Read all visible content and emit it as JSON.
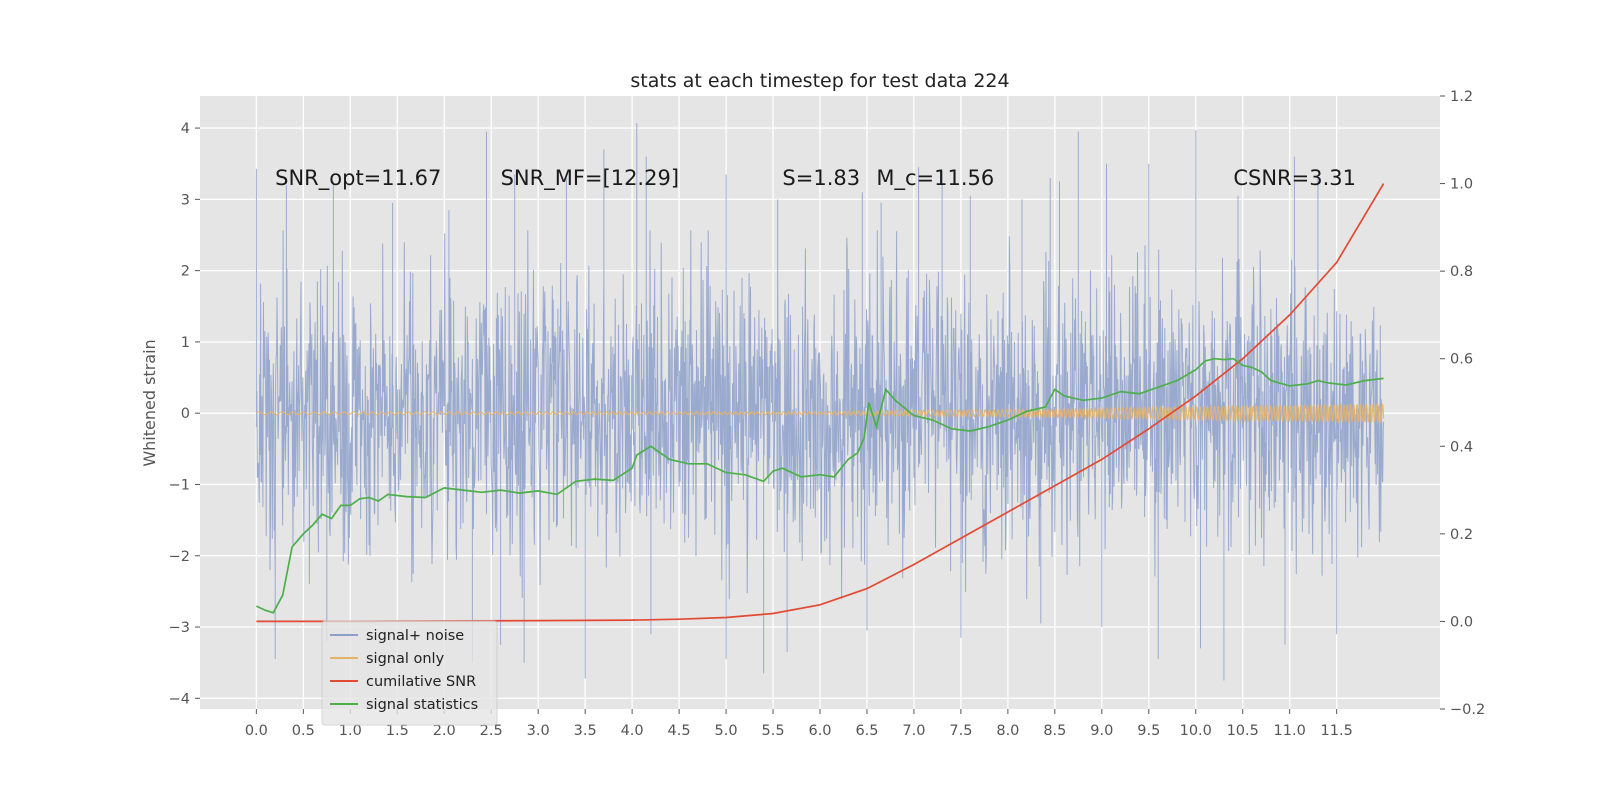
{
  "chart_data": {
    "type": "line",
    "title": "stats at each timestep for test data 224",
    "ylabel": "Whitened strain",
    "xlabel": "",
    "xlim": [
      -0.6,
      12.6
    ],
    "ylim": [
      -4.15,
      4.45
    ],
    "y2lim": [
      -0.2,
      1.2
    ],
    "grid": true,
    "legend_position": "lower-left",
    "x_ticks": [
      0.0,
      0.5,
      1.0,
      1.5,
      2.0,
      2.5,
      3.0,
      3.5,
      4.0,
      4.5,
      5.0,
      5.5,
      6.0,
      6.5,
      7.0,
      7.5,
      8.0,
      8.5,
      9.0,
      9.5,
      10.0,
      10.5,
      11.0,
      11.5
    ],
    "x_tick_labels": [
      "0.0",
      "0.5",
      "1.0",
      "1.5",
      "2.0",
      "2.5",
      "3.0",
      "3.5",
      "4.0",
      "4.5",
      "5.0",
      "5.5",
      "6.0",
      "6.5",
      "7.0",
      "7.5",
      "8.0",
      "8.5",
      "9.0",
      "9.5",
      "10.0",
      "10.5",
      "11.0",
      "11.5"
    ],
    "y_ticks": [
      -4,
      -3,
      -2,
      -1,
      0,
      1,
      2,
      3,
      4
    ],
    "y_tick_labels": [
      "−4",
      "−3",
      "−2",
      "−1",
      "0",
      "1",
      "2",
      "3",
      "4"
    ],
    "y2_ticks": [
      -0.2,
      0.0,
      0.2,
      0.4,
      0.6,
      0.8,
      1.0,
      1.2
    ],
    "y2_tick_labels": [
      "−0.2",
      "0.0",
      "0.2",
      "0.4",
      "0.6",
      "0.8",
      "1.0",
      "1.2"
    ],
    "annotations": [
      {
        "text": "SNR_opt=11.67",
        "x": 0.2,
        "y": 3.3
      },
      {
        "text": "SNR_MF=[12.29]",
        "x": 2.6,
        "y": 3.3
      },
      {
        "text": "S=1.83",
        "x": 5.6,
        "y": 3.3
      },
      {
        "text": "M_c=11.56",
        "x": 6.6,
        "y": 3.3
      },
      {
        "text": "CSNR=3.31",
        "x": 10.4,
        "y": 3.3
      }
    ],
    "series": [
      {
        "name": "signal+ noise",
        "axis": "left",
        "color": "#8da0cb",
        "x_range": [
          0.0,
          12.0
        ],
        "envelope_typical": [
          -1.8,
          1.9
        ],
        "peaks": [
          {
            "x": 0.0,
            "y": 3.43
          },
          {
            "x": 0.32,
            "y": 3.2
          },
          {
            "x": 0.82,
            "y": 3.25
          },
          {
            "x": 1.45,
            "y": 2.95
          },
          {
            "x": 2.05,
            "y": 2.85
          },
          {
            "x": 2.45,
            "y": 3.95
          },
          {
            "x": 2.75,
            "y": 3.35
          },
          {
            "x": 3.3,
            "y": 3.3
          },
          {
            "x": 3.7,
            "y": 3.7
          },
          {
            "x": 4.05,
            "y": 4.07
          },
          {
            "x": 4.15,
            "y": 3.6
          },
          {
            "x": 5.0,
            "y": 3.35
          },
          {
            "x": 5.55,
            "y": 3.0
          },
          {
            "x": 6.45,
            "y": 3.1
          },
          {
            "x": 6.65,
            "y": 2.95
          },
          {
            "x": 7.05,
            "y": 3.45
          },
          {
            "x": 7.3,
            "y": 3.4
          },
          {
            "x": 7.6,
            "y": 3.05
          },
          {
            "x": 8.15,
            "y": 3.0
          },
          {
            "x": 8.45,
            "y": 3.3
          },
          {
            "x": 8.55,
            "y": 3.25
          },
          {
            "x": 8.75,
            "y": 3.95
          },
          {
            "x": 9.05,
            "y": 3.5
          },
          {
            "x": 9.5,
            "y": 3.5
          },
          {
            "x": 10.0,
            "y": 3.97
          },
          {
            "x": 10.45,
            "y": 3.05
          },
          {
            "x": 11.05,
            "y": 3.6
          },
          {
            "x": 11.3,
            "y": 3.3
          }
        ],
        "troughs": [
          {
            "x": 0.2,
            "y": -3.45
          },
          {
            "x": 0.75,
            "y": -3.2
          },
          {
            "x": 2.3,
            "y": -3.5
          },
          {
            "x": 2.6,
            "y": -3.25
          },
          {
            "x": 2.85,
            "y": -3.5
          },
          {
            "x": 3.5,
            "y": -3.72
          },
          {
            "x": 4.2,
            "y": -3.1
          },
          {
            "x": 5.0,
            "y": -3.45
          },
          {
            "x": 5.4,
            "y": -3.65
          },
          {
            "x": 5.65,
            "y": -3.35
          },
          {
            "x": 6.5,
            "y": -3.05
          },
          {
            "x": 7.5,
            "y": -3.15
          },
          {
            "x": 8.35,
            "y": -2.95
          },
          {
            "x": 9.0,
            "y": -3.0
          },
          {
            "x": 9.6,
            "y": -3.45
          },
          {
            "x": 10.05,
            "y": -3.3
          },
          {
            "x": 10.3,
            "y": -3.75
          },
          {
            "x": 10.95,
            "y": -3.25
          },
          {
            "x": 11.5,
            "y": -3.1
          }
        ]
      },
      {
        "name": "signal only",
        "axis": "left",
        "color": "#e5b367",
        "x_range": [
          0.0,
          12.0
        ],
        "amplitude": [
          [
            0.0,
            0.02
          ],
          [
            6.0,
            0.02
          ],
          [
            7.0,
            0.04
          ],
          [
            8.0,
            0.05
          ],
          [
            9.0,
            0.07
          ],
          [
            10.0,
            0.09
          ],
          [
            11.0,
            0.11
          ],
          [
            12.0,
            0.13
          ]
        ]
      },
      {
        "name": "cumilative SNR",
        "axis": "right",
        "color": "#e24a33",
        "x": [
          0.0,
          1.0,
          2.0,
          3.0,
          4.0,
          4.5,
          5.0,
          5.5,
          6.0,
          6.5,
          7.0,
          7.5,
          8.0,
          8.5,
          9.0,
          9.5,
          10.0,
          10.5,
          11.0,
          11.5,
          12.0
        ],
        "y": [
          0.0,
          0.0,
          0.001,
          0.002,
          0.003,
          0.005,
          0.009,
          0.018,
          0.038,
          0.075,
          0.13,
          0.19,
          0.25,
          0.31,
          0.37,
          0.44,
          0.515,
          0.6,
          0.7,
          0.82,
          1.0
        ]
      },
      {
        "name": "signal statistics",
        "axis": "right",
        "color": "#4daf4a",
        "x": [
          0.0,
          0.1,
          0.18,
          0.28,
          0.38,
          0.5,
          0.6,
          0.7,
          0.8,
          0.9,
          1.0,
          1.1,
          1.2,
          1.3,
          1.4,
          1.6,
          1.8,
          2.0,
          2.2,
          2.4,
          2.6,
          2.8,
          3.0,
          3.2,
          3.4,
          3.6,
          3.8,
          4.0,
          4.05,
          4.2,
          4.4,
          4.6,
          4.8,
          5.0,
          5.2,
          5.4,
          5.5,
          5.6,
          5.8,
          6.0,
          6.15,
          6.3,
          6.4,
          6.47,
          6.52,
          6.6,
          6.7,
          6.8,
          7.0,
          7.2,
          7.4,
          7.6,
          7.8,
          8.0,
          8.2,
          8.4,
          8.5,
          8.6,
          8.8,
          9.0,
          9.2,
          9.4,
          9.6,
          9.8,
          10.0,
          10.1,
          10.2,
          10.3,
          10.4,
          10.5,
          10.6,
          10.7,
          10.8,
          11.0,
          11.2,
          11.3,
          11.4,
          11.6,
          11.8,
          12.0
        ],
        "y": [
          0.035,
          0.025,
          0.02,
          0.06,
          0.17,
          0.2,
          0.22,
          0.245,
          0.235,
          0.265,
          0.265,
          0.28,
          0.283,
          0.275,
          0.29,
          0.285,
          0.283,
          0.305,
          0.3,
          0.295,
          0.3,
          0.293,
          0.298,
          0.29,
          0.32,
          0.325,
          0.322,
          0.35,
          0.38,
          0.4,
          0.37,
          0.36,
          0.36,
          0.34,
          0.335,
          0.32,
          0.343,
          0.35,
          0.33,
          0.335,
          0.33,
          0.37,
          0.385,
          0.42,
          0.5,
          0.445,
          0.53,
          0.505,
          0.47,
          0.46,
          0.44,
          0.435,
          0.445,
          0.46,
          0.48,
          0.49,
          0.53,
          0.515,
          0.505,
          0.51,
          0.525,
          0.52,
          0.535,
          0.55,
          0.575,
          0.595,
          0.6,
          0.598,
          0.6,
          0.585,
          0.58,
          0.57,
          0.55,
          0.538,
          0.543,
          0.55,
          0.545,
          0.54,
          0.55,
          0.555
        ]
      }
    ]
  }
}
